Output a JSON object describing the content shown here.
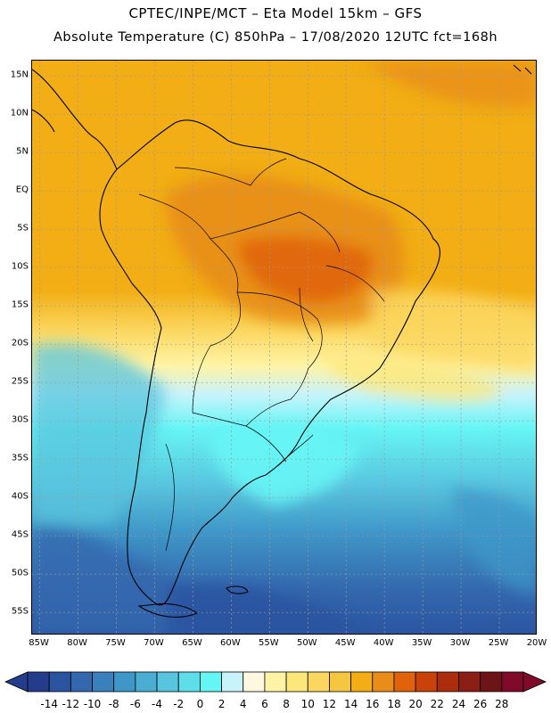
{
  "header": {
    "line1": "CPTEC/INPE/MCT –  Eta Model 15km – GFS",
    "line2": "Absolute Temperature (C) 850hPa – 17/08/2020 12UTC fct=168h"
  },
  "map": {
    "lat_labels": [
      "15N",
      "10N",
      "5N",
      "EQ",
      "5S",
      "10S",
      "15S",
      "20S",
      "25S",
      "30S",
      "35S",
      "40S",
      "45S",
      "50S",
      "55S"
    ],
    "lat_values": [
      15,
      10,
      5,
      0,
      -5,
      -10,
      -15,
      -20,
      -25,
      -30,
      -35,
      -40,
      -45,
      -50,
      -55
    ],
    "lon_labels": [
      "85W",
      "80W",
      "75W",
      "70W",
      "65W",
      "60W",
      "55W",
      "50W",
      "45W",
      "40W",
      "35W",
      "30W",
      "25W",
      "20W"
    ],
    "lon_values": [
      -85,
      -80,
      -75,
      -70,
      -65,
      -60,
      -55,
      -50,
      -45,
      -40,
      -35,
      -30,
      -25,
      -20
    ],
    "lat_range": [
      -58,
      17
    ],
    "lon_range": [
      -86,
      -20
    ]
  },
  "colorbar": {
    "labels": [
      "-14",
      "-12",
      "-10",
      "-8",
      "-6",
      "-4",
      "-2",
      "0",
      "2",
      "4",
      "6",
      "8",
      "10",
      "12",
      "14",
      "16",
      "18",
      "20",
      "22",
      "24",
      "26",
      "28"
    ],
    "colors": [
      "#233d8c",
      "#2b54a0",
      "#3468ae",
      "#3a80bd",
      "#3f97c8",
      "#4aaed3",
      "#58c4de",
      "#5fdde9",
      "#66f5f5",
      "#c9f3fb",
      "#fef8e0",
      "#fff4a5",
      "#fde77a",
      "#fbd760",
      "#f5c640",
      "#f2ae14",
      "#e88d18",
      "#e0620a",
      "#c8420a",
      "#ad2c0c",
      "#8b1e14",
      "#6d1417",
      "#800a2a"
    ],
    "min_arrow_color": "#233d8c",
    "max_arrow_color": "#800a2a"
  },
  "styling": {
    "grid_color": "#9a9a9a",
    "coast_color": "#000000",
    "sea_warm": "#f5a623",
    "sea_cold": "#3a80bd"
  }
}
